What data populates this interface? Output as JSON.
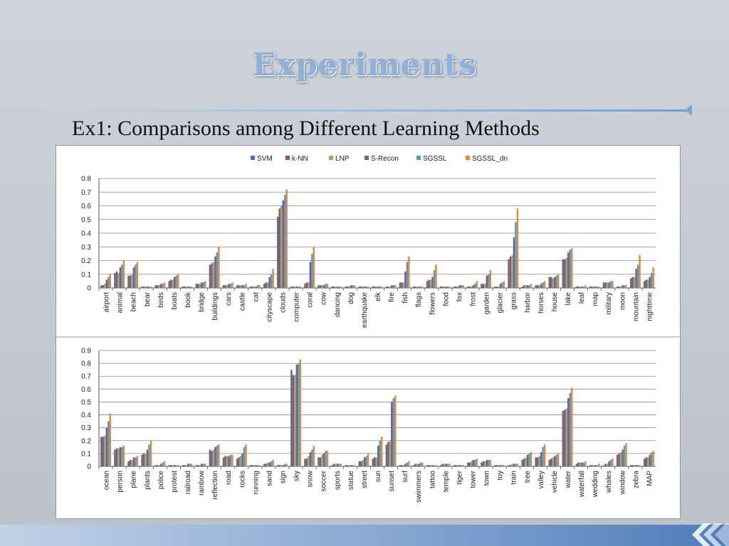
{
  "slide": {
    "title": "Experiments",
    "subtitle": "Ex1: Comparisons among Different Learning Methods"
  },
  "legend": {
    "series": [
      "SVM",
      "k-NN",
      "LNP",
      "S-Recon",
      "SGSSL",
      "SGSSL_dn"
    ],
    "colors": [
      "#4a6fb4",
      "#b24a48",
      "#8fb454",
      "#7a5a9e",
      "#4aa0c4",
      "#e6883a"
    ]
  },
  "chart_data": [
    {
      "type": "bar",
      "ylim": [
        0,
        0.8
      ],
      "yticks": [
        0,
        0.1,
        0.2,
        0.3,
        0.4,
        0.5,
        0.6,
        0.7,
        0.8
      ],
      "categories": [
        "airport",
        "animal",
        "beach",
        "bear",
        "birds",
        "boats",
        "book",
        "bridge",
        "buildings",
        "cars",
        "castle",
        "cat",
        "cityscape",
        "clouds",
        "computer",
        "coral",
        "cow",
        "dancing",
        "dog",
        "earthquake",
        "elk",
        "fire",
        "fish",
        "flags",
        "flowers",
        "food",
        "fox",
        "frost",
        "garden",
        "glacier",
        "grass",
        "harbor",
        "horses",
        "house",
        "lake",
        "leaf",
        "map",
        "military",
        "moon",
        "mountain",
        "nighttime"
      ],
      "series": [
        {
          "name": "SVM",
          "values": [
            0.02,
            0.11,
            0.09,
            0.01,
            0.02,
            0.05,
            0.01,
            0.03,
            0.17,
            0.02,
            0.02,
            0.01,
            0.03,
            0.52,
            0.01,
            0.03,
            0.02,
            0.01,
            0.01,
            0.01,
            0.01,
            0.01,
            0.04,
            0.01,
            0.05,
            0.01,
            0.01,
            0.01,
            0.03,
            0.01,
            0.21,
            0.01,
            0.02,
            0.08,
            0.21,
            0.01,
            0.01,
            0.04,
            0.01,
            0.07,
            0.05
          ]
        },
        {
          "name": "k-NN",
          "values": [
            0.02,
            0.12,
            0.09,
            0.01,
            0.02,
            0.06,
            0.01,
            0.03,
            0.18,
            0.02,
            0.02,
            0.01,
            0.04,
            0.58,
            0.01,
            0.04,
            0.02,
            0.01,
            0.01,
            0.01,
            0.01,
            0.01,
            0.04,
            0.01,
            0.06,
            0.01,
            0.01,
            0.01,
            0.03,
            0.01,
            0.23,
            0.02,
            0.02,
            0.08,
            0.21,
            0.01,
            0.01,
            0.04,
            0.01,
            0.08,
            0.06
          ]
        },
        {
          "name": "LNP",
          "values": [
            0.03,
            0.11,
            0.1,
            0.01,
            0.02,
            0.06,
            0.01,
            0.03,
            0.19,
            0.02,
            0.02,
            0.01,
            0.04,
            0.6,
            0.01,
            0.04,
            0.02,
            0.01,
            0.01,
            0.01,
            0.01,
            0.01,
            0.04,
            0.01,
            0.06,
            0.01,
            0.01,
            0.01,
            0.03,
            0.01,
            0.24,
            0.02,
            0.02,
            0.07,
            0.22,
            0.01,
            0.01,
            0.04,
            0.01,
            0.08,
            0.06
          ]
        },
        {
          "name": "S-Recon",
          "values": [
            0.06,
            0.15,
            0.15,
            0.01,
            0.03,
            0.08,
            0.01,
            0.04,
            0.23,
            0.03,
            0.02,
            0.01,
            0.08,
            0.64,
            0.01,
            0.19,
            0.02,
            0.01,
            0.02,
            0.01,
            0.01,
            0.02,
            0.12,
            0.01,
            0.08,
            0.01,
            0.02,
            0.02,
            0.09,
            0.03,
            0.37,
            0.02,
            0.03,
            0.08,
            0.26,
            0.01,
            0.01,
            0.04,
            0.02,
            0.14,
            0.08
          ]
        },
        {
          "name": "SGSSL",
          "values": [
            0.08,
            0.17,
            0.17,
            0.01,
            0.03,
            0.09,
            0.01,
            0.04,
            0.26,
            0.03,
            0.02,
            0.02,
            0.1,
            0.68,
            0.01,
            0.25,
            0.03,
            0.01,
            0.02,
            0.01,
            0.01,
            0.02,
            0.19,
            0.01,
            0.13,
            0.01,
            0.02,
            0.03,
            0.1,
            0.04,
            0.48,
            0.02,
            0.04,
            0.09,
            0.28,
            0.01,
            0.01,
            0.05,
            0.02,
            0.17,
            0.11
          ]
        },
        {
          "name": "SGSSL_dn",
          "values": [
            0.1,
            0.2,
            0.19,
            0.01,
            0.04,
            0.1,
            0.01,
            0.05,
            0.3,
            0.04,
            0.03,
            0.02,
            0.14,
            0.72,
            0.01,
            0.3,
            0.03,
            0.01,
            0.02,
            0.01,
            0.01,
            0.02,
            0.23,
            0.01,
            0.17,
            0.01,
            0.02,
            0.05,
            0.13,
            0.05,
            0.58,
            0.03,
            0.05,
            0.1,
            0.29,
            0.02,
            0.01,
            0.05,
            0.02,
            0.24,
            0.15
          ]
        }
      ]
    },
    {
      "type": "bar",
      "ylim": [
        0,
        0.9
      ],
      "yticks": [
        0,
        0.1,
        0.2,
        0.3,
        0.4,
        0.5,
        0.6,
        0.7,
        0.8,
        0.9
      ],
      "categories": [
        "ocean",
        "person",
        "plane",
        "plants",
        "police",
        "protest",
        "railroad",
        "rainbow",
        "reflection",
        "road",
        "rocks",
        "running",
        "sand",
        "sign",
        "sky",
        "snow",
        "soccer",
        "sports",
        "statue",
        "street",
        "sun",
        "sunset",
        "surf",
        "swimmers",
        "tattoo",
        "temple",
        "tiger",
        "tower",
        "town",
        "toy",
        "train",
        "tree",
        "valley",
        "vehicle",
        "water",
        "waterfall",
        "wedding",
        "whales",
        "window",
        "zebra",
        "MAP"
      ],
      "series": [
        {
          "name": "SVM",
          "values": [
            0.23,
            0.13,
            0.04,
            0.09,
            0.01,
            0.01,
            0.01,
            0.01,
            0.13,
            0.07,
            0.06,
            0.01,
            0.02,
            0.01,
            0.75,
            0.06,
            0.07,
            0.01,
            0.01,
            0.04,
            0.06,
            0.17,
            0.01,
            0.01,
            0.01,
            0.01,
            0.01,
            0.03,
            0.03,
            0.01,
            0.01,
            0.05,
            0.07,
            0.05,
            0.43,
            0.02,
            0.01,
            0.01,
            0.09,
            0.01,
            0.06
          ]
        },
        {
          "name": "k-NN",
          "values": [
            0.23,
            0.14,
            0.05,
            0.1,
            0.01,
            0.01,
            0.01,
            0.01,
            0.12,
            0.08,
            0.07,
            0.01,
            0.02,
            0.01,
            0.71,
            0.06,
            0.07,
            0.02,
            0.01,
            0.04,
            0.07,
            0.19,
            0.01,
            0.02,
            0.01,
            0.02,
            0.01,
            0.03,
            0.04,
            0.01,
            0.01,
            0.06,
            0.07,
            0.06,
            0.44,
            0.03,
            0.01,
            0.02,
            0.1,
            0.01,
            0.07
          ]
        },
        {
          "name": "LNP",
          "values": [
            0.24,
            0.14,
            0.05,
            0.1,
            0.01,
            0.01,
            0.01,
            0.01,
            0.13,
            0.08,
            0.08,
            0.01,
            0.03,
            0.01,
            0.71,
            0.08,
            0.09,
            0.02,
            0.01,
            0.05,
            0.07,
            0.2,
            0.01,
            0.02,
            0.01,
            0.02,
            0.01,
            0.04,
            0.04,
            0.01,
            0.02,
            0.07,
            0.08,
            0.07,
            0.45,
            0.03,
            0.01,
            0.02,
            0.11,
            0.01,
            0.07
          ]
        },
        {
          "name": "S-Recon",
          "values": [
            0.3,
            0.15,
            0.07,
            0.13,
            0.02,
            0.01,
            0.02,
            0.02,
            0.15,
            0.08,
            0.1,
            0.01,
            0.03,
            0.01,
            0.79,
            0.11,
            0.1,
            0.02,
            0.01,
            0.07,
            0.16,
            0.5,
            0.02,
            0.02,
            0.01,
            0.02,
            0.01,
            0.05,
            0.05,
            0.01,
            0.02,
            0.09,
            0.11,
            0.08,
            0.53,
            0.03,
            0.01,
            0.04,
            0.13,
            0.01,
            0.09
          ]
        },
        {
          "name": "SGSSL",
          "values": [
            0.35,
            0.15,
            0.07,
            0.17,
            0.03,
            0.01,
            0.02,
            0.02,
            0.16,
            0.09,
            0.15,
            0.01,
            0.04,
            0.02,
            0.8,
            0.13,
            0.12,
            0.02,
            0.01,
            0.08,
            0.2,
            0.53,
            0.03,
            0.03,
            0.01,
            0.02,
            0.01,
            0.05,
            0.05,
            0.01,
            0.02,
            0.1,
            0.15,
            0.09,
            0.57,
            0.03,
            0.01,
            0.05,
            0.16,
            0.01,
            0.11
          ]
        },
        {
          "name": "SGSSL_dn",
          "values": [
            0.41,
            0.16,
            0.08,
            0.2,
            0.04,
            0.01,
            0.02,
            0.02,
            0.17,
            0.09,
            0.17,
            0.01,
            0.05,
            0.02,
            0.83,
            0.16,
            0.12,
            0.02,
            0.01,
            0.1,
            0.23,
            0.55,
            0.04,
            0.03,
            0.01,
            0.02,
            0.01,
            0.06,
            0.05,
            0.01,
            0.02,
            0.11,
            0.17,
            0.1,
            0.61,
            0.04,
            0.02,
            0.06,
            0.18,
            0.01,
            0.12
          ]
        }
      ]
    }
  ]
}
